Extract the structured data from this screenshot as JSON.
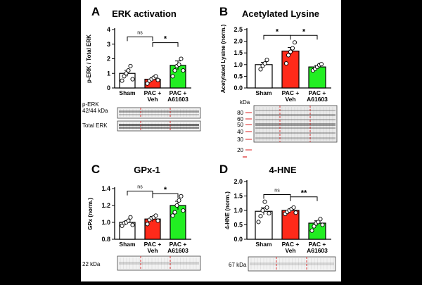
{
  "figure": {
    "group_labels": [
      "Sham",
      "PAC +\nVeh",
      "PAC +\nA61603"
    ]
  },
  "colors": {
    "sham": "#ffffff",
    "veh": "#ff2a1a",
    "a61603": "#22ee22",
    "marker_red": "#dd2222"
  },
  "chart_data": [
    {
      "panel": "A",
      "type": "bar",
      "title": "ERK activation",
      "ylabel": "p-ERK / Total ERK",
      "ylim": [
        0,
        4
      ],
      "yticks": [
        0,
        1,
        2,
        3,
        4
      ],
      "categories": [
        "Sham",
        "PAC + Veh",
        "PAC + A61603"
      ],
      "values": [
        1.0,
        0.6,
        1.55
      ],
      "errors": [
        0.2,
        0.1,
        0.3
      ],
      "points": [
        [
          0.5,
          0.8,
          1.0,
          1.2,
          1.5,
          0.6
        ],
        [
          0.3,
          0.5,
          0.6,
          0.7,
          0.8,
          0.55
        ],
        [
          0.8,
          1.2,
          1.5,
          1.6,
          2.0,
          1.2
        ]
      ],
      "comparisons": [
        {
          "pair": [
            0,
            1
          ],
          "label": "ns",
          "y": 3.5
        },
        {
          "pair": [
            1,
            2
          ],
          "label": "*",
          "y": 3.1
        }
      ],
      "blot_labels": [
        "p-ERK\n42/44 kDa",
        "Total ERK"
      ]
    },
    {
      "panel": "B",
      "type": "bar",
      "title": "Acetylated Lysine",
      "ylabel": "Acetylated Lysine (norm.)",
      "ylim": [
        0,
        2.5
      ],
      "yticks": [
        0.0,
        0.5,
        1.0,
        1.5,
        2.0,
        2.5
      ],
      "categories": [
        "Sham",
        "PAC + Veh",
        "PAC + A61603"
      ],
      "values": [
        1.0,
        1.58,
        0.9
      ],
      "errors": [
        0.1,
        0.15,
        0.06
      ],
      "points": [
        [
          0.8,
          0.95,
          1.05,
          1.2
        ],
        [
          1.05,
          1.4,
          1.55,
          1.7,
          1.95
        ],
        [
          0.75,
          0.82,
          0.9,
          0.98,
          1.02
        ]
      ],
      "comparisons": [
        {
          "pair": [
            0,
            1
          ],
          "label": "*",
          "y": 2.25
        },
        {
          "pair": [
            1,
            2
          ],
          "label": "*",
          "y": 2.25
        }
      ],
      "blot_labels": [
        "kDa",
        "80",
        "60",
        "50",
        "40",
        "30",
        "20"
      ]
    },
    {
      "panel": "C",
      "type": "bar",
      "title": "GPx-1",
      "ylabel": "GPx (norm.)",
      "ylim": [
        0.8,
        1.4
      ],
      "yticks": [
        0.8,
        1.0,
        1.2,
        1.4
      ],
      "categories": [
        "Sham",
        "PAC + Veh",
        "PAC + A61603"
      ],
      "values": [
        1.0,
        1.04,
        1.2
      ],
      "errors": [
        0.02,
        0.03,
        0.05
      ],
      "points": [
        [
          0.96,
          0.99,
          1.0,
          1.02,
          1.06,
          0.97
        ],
        [
          0.98,
          1.03,
          1.05,
          1.06,
          1.08,
          1.02
        ],
        [
          1.08,
          1.12,
          1.2,
          1.26,
          1.31,
          1.14
        ]
      ],
      "comparisons": [
        {
          "pair": [
            0,
            1
          ],
          "label": "ns",
          "y": 1.37
        },
        {
          "pair": [
            1,
            2
          ],
          "label": "*",
          "y": 1.34
        }
      ],
      "blot_labels": [
        "22 kDa"
      ]
    },
    {
      "panel": "D",
      "type": "bar",
      "title": "4-HNE",
      "ylabel": "4-HNE (norm.)",
      "ylim": [
        0,
        2
      ],
      "yticks": [
        0.0,
        0.5,
        1.0,
        1.5,
        2.0
      ],
      "categories": [
        "Sham",
        "PAC + Veh",
        "PAC + A61603"
      ],
      "values": [
        0.97,
        1.0,
        0.56
      ],
      "errors": [
        0.12,
        0.05,
        0.08
      ],
      "points": [
        [
          0.6,
          0.8,
          1.0,
          1.3,
          1.1,
          0.9
        ],
        [
          0.88,
          0.95,
          1.0,
          1.05,
          1.1,
          0.92
        ],
        [
          0.3,
          0.45,
          0.55,
          0.6,
          0.7,
          0.5
        ]
      ],
      "comparisons": [
        {
          "pair": [
            0,
            1
          ],
          "label": "ns",
          "y": 1.55
        },
        {
          "pair": [
            1,
            2
          ],
          "label": "**",
          "y": 1.47
        }
      ],
      "blot_labels": [
        "67 kDa"
      ]
    }
  ]
}
